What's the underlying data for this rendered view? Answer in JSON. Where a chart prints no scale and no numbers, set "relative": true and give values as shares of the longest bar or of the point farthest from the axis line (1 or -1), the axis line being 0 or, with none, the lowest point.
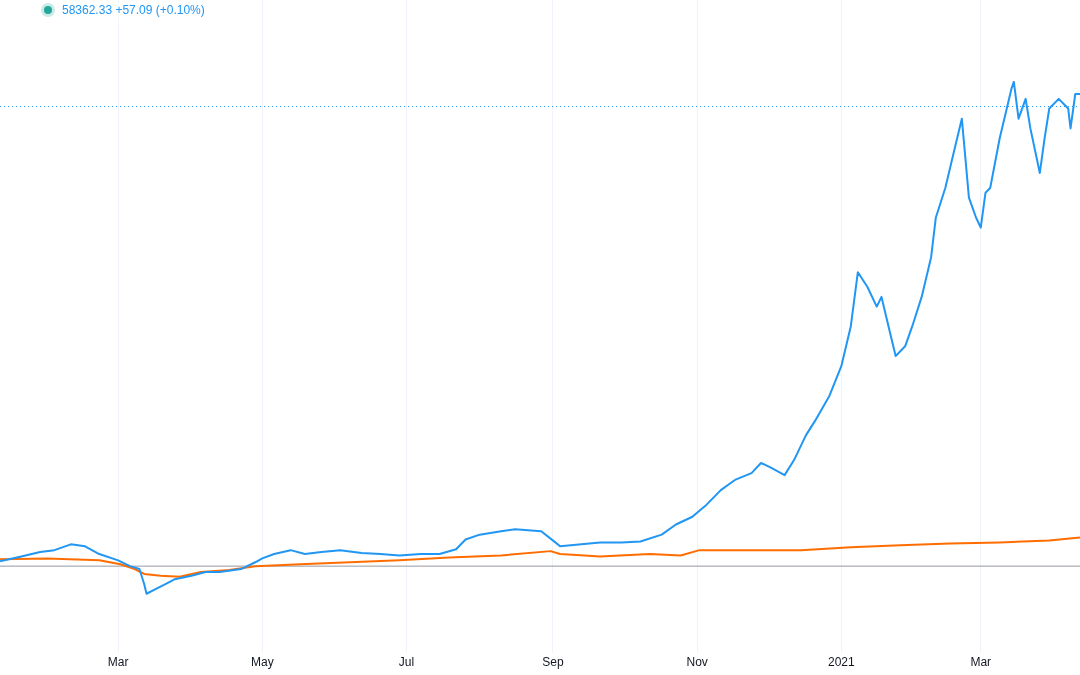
{
  "chart_data": {
    "type": "line",
    "relative": true,
    "grid": "x",
    "legend": false,
    "marker": "none",
    "line_style": "solid",
    "annotations": [
      "58362.33 +57.09 (+0.10%)"
    ],
    "xlim": [
      "2020-01-11",
      "2021-04-12"
    ],
    "xticks": [
      {
        "value": "2020-03-01",
        "label": "Mar"
      },
      {
        "value": "2020-05-01",
        "label": "May"
      },
      {
        "value": "2020-07-01",
        "label": "Jul"
      },
      {
        "value": "2020-09-01",
        "label": "Sep"
      },
      {
        "value": "2020-11-01",
        "label": "Nov"
      },
      {
        "value": "2021-01-01",
        "label": "2021"
      },
      {
        "value": "2021-03-01",
        "label": "Mar"
      }
    ],
    "ref_lines": [
      {
        "axis": "y",
        "value": 0.949,
        "label": null,
        "color": "#2196f3",
        "line_style": "dotted"
      }
    ],
    "series": [
      {
        "color": "#2196f3",
        "x": [
          "2020-01-11",
          "2020-01-20",
          "2020-01-28",
          "2020-02-03",
          "2020-02-10",
          "2020-02-16",
          "2020-02-22",
          "2020-03-01",
          "2020-03-06",
          "2020-03-10",
          "2020-03-12",
          "2020-03-13",
          "2020-03-17",
          "2020-03-21",
          "2020-03-25",
          "2020-04-01",
          "2020-04-07",
          "2020-04-13",
          "2020-04-22",
          "2020-04-28",
          "2020-05-01",
          "2020-05-06",
          "2020-05-13",
          "2020-05-19",
          "2020-05-26",
          "2020-06-03",
          "2020-06-12",
          "2020-06-20",
          "2020-06-28",
          "2020-07-07",
          "2020-07-15",
          "2020-07-22",
          "2020-07-26",
          "2020-08-01",
          "2020-08-10",
          "2020-08-16",
          "2020-08-27",
          "2020-09-02",
          "2020-09-04",
          "2020-09-13",
          "2020-09-21",
          "2020-09-30",
          "2020-10-08",
          "2020-10-17",
          "2020-10-23",
          "2020-10-30",
          "2020-11-05",
          "2020-11-11",
          "2020-11-17",
          "2020-11-24",
          "2020-11-28",
          "2020-12-02",
          "2020-12-08",
          "2020-12-12",
          "2020-12-17",
          "2020-12-21",
          "2020-12-27",
          "2021-01-01",
          "2021-01-05",
          "2021-01-08",
          "2021-01-12",
          "2021-01-16",
          "2021-01-18",
          "2021-01-22",
          "2021-01-24",
          "2021-01-28",
          "2021-01-31",
          "2021-02-04",
          "2021-02-08",
          "2021-02-10",
          "2021-02-14",
          "2021-02-18",
          "2021-02-21",
          "2021-02-24",
          "2021-02-27",
          "2021-03-01",
          "2021-03-03",
          "2021-03-05",
          "2021-03-09",
          "2021-03-14",
          "2021-03-15",
          "2021-03-17",
          "2021-03-20",
          "2021-03-22",
          "2021-03-26",
          "2021-03-28",
          "2021-03-30",
          "2021-04-03",
          "2021-04-07",
          "2021-04-08",
          "2021-04-10",
          "2021-04-12"
        ],
        "values": [
          0.01,
          0.02,
          0.029,
          0.033,
          0.045,
          0.041,
          0.025,
          0.012,
          0,
          -0.006,
          -0.037,
          -0.057,
          -0.047,
          -0.037,
          -0.027,
          -0.02,
          -0.012,
          -0.012,
          -0.006,
          0.008,
          0.016,
          0.025,
          0.033,
          0.025,
          0.029,
          0.033,
          0.027,
          0.025,
          0.022,
          0.025,
          0.025,
          0.035,
          0.055,
          0.065,
          0.072,
          0.076,
          0.072,
          0.049,
          0.041,
          0.045,
          0.049,
          0.049,
          0.051,
          0.065,
          0.086,
          0.102,
          0.127,
          0.157,
          0.178,
          0.192,
          0.213,
          0.204,
          0.188,
          0.219,
          0.27,
          0.301,
          0.352,
          0.413,
          0.495,
          0.607,
          0.577,
          0.536,
          0.556,
          0.474,
          0.434,
          0.454,
          0.495,
          0.556,
          0.638,
          0.72,
          0.781,
          0.863,
          0.924,
          0.761,
          0.72,
          0.699,
          0.771,
          0.781,
          0.883,
          0.986,
          1,
          0.924,
          0.965,
          0.904,
          0.812,
          0.883,
          0.945,
          0.965,
          0.945,
          0.904,
          0.975,
          0.975
        ]
      },
      {
        "color": "#ff6d00",
        "x": [
          "2020-01-11",
          "2020-01-31",
          "2020-02-22",
          "2020-03-02",
          "2020-03-08",
          "2020-03-12",
          "2020-03-19",
          "2020-03-27",
          "2020-04-05",
          "2020-04-17",
          "2020-04-28",
          "2020-05-17",
          "2020-06-07",
          "2020-06-28",
          "2020-07-19",
          "2020-08-10",
          "2020-08-31",
          "2020-09-04",
          "2020-09-21",
          "2020-10-12",
          "2020-10-25",
          "2020-11-02",
          "2020-11-24",
          "2020-12-15",
          "2021-01-05",
          "2021-01-26",
          "2021-02-16",
          "2021-03-09",
          "2021-03-30",
          "2021-04-12"
        ],
        "values": [
          0.014,
          0.016,
          0.012,
          0.004,
          -0.006,
          -0.016,
          -0.02,
          -0.022,
          -0.012,
          -0.008,
          0,
          0.004,
          0.008,
          0.012,
          0.018,
          0.022,
          0.031,
          0.025,
          0.02,
          0.025,
          0.022,
          0.033,
          0.033,
          0.033,
          0.039,
          0.043,
          0.047,
          0.049,
          0.053,
          0.059
        ]
      }
    ]
  }
}
